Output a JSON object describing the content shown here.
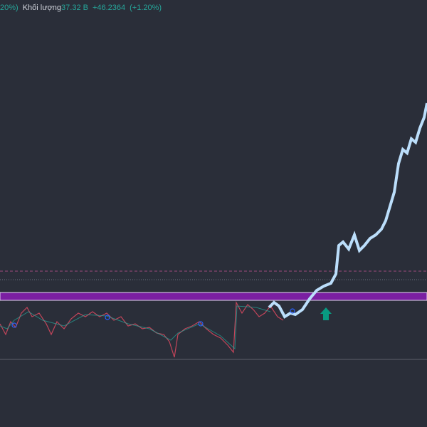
{
  "header": {
    "change_tail": "20%)",
    "volume_label": "Khối lượng",
    "volume_value": "37.32 B",
    "volume_change": "+46.2364",
    "volume_change_pct": "(+1.20%)"
  }
}
